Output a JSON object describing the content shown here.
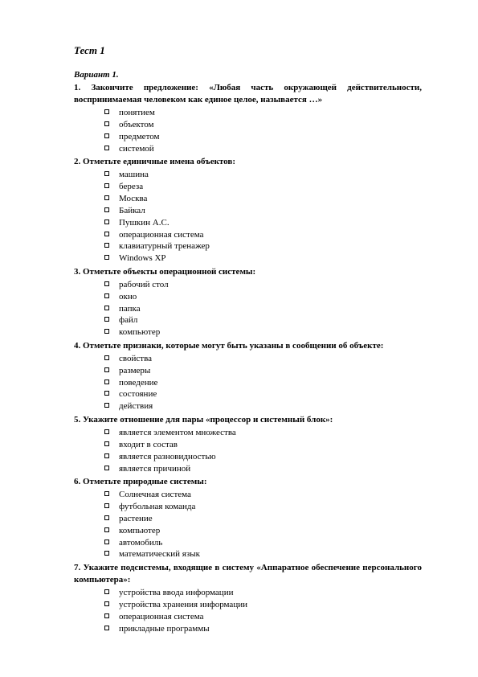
{
  "title": "Тест 1",
  "variant": "Вариант 1.",
  "questions": [
    {
      "num": "1.",
      "text": "Закончите предложение: «Любая часть окружающей действительности, воспринимаемая человеком как единое целое, называется …»",
      "justify": true,
      "opts": [
        "понятием",
        "объектом",
        "предметом",
        "системой"
      ]
    },
    {
      "num": "2.",
      "text": "Отметьте единичные имена объектов:",
      "opts": [
        "машина",
        "береза",
        "Москва",
        "Байкал",
        "Пушкин А.С.",
        "операционная система",
        "клавиатурный тренажер",
        "Windows XP"
      ]
    },
    {
      "num": "3.",
      "text": "Отметьте объекты операционной системы:",
      "opts": [
        "рабочий стол",
        "окно",
        "папка",
        "файл",
        "компьютер"
      ]
    },
    {
      "num": "4.",
      "text": "Отметьте признаки, которые могут быть указаны в сообщении об объекте:",
      "opts": [
        "свойства",
        "размеры",
        "поведение",
        "состояние",
        "действия"
      ]
    },
    {
      "num": "5.",
      "text": "Укажите отношение для пары «процессор и системный блок»:",
      "opts": [
        "является элементом множества",
        "входит в состав",
        "является разновидностью",
        "является причиной"
      ]
    },
    {
      "num": "6.",
      "text": "Отметьте природные системы:",
      "opts": [
        "Солнечная система",
        "футбольная команда",
        "растение",
        "компьютер",
        "автомобиль",
        "математический язык"
      ]
    },
    {
      "num": "7.",
      "text": "Укажите подсистемы, входящие в систему «Аппаратное обеспечение персонального компьютера»:",
      "justify": true,
      "opts": [
        "устройства ввода информации",
        "устройства хранения информации",
        "операционная система",
        "прикладные программы"
      ]
    }
  ]
}
